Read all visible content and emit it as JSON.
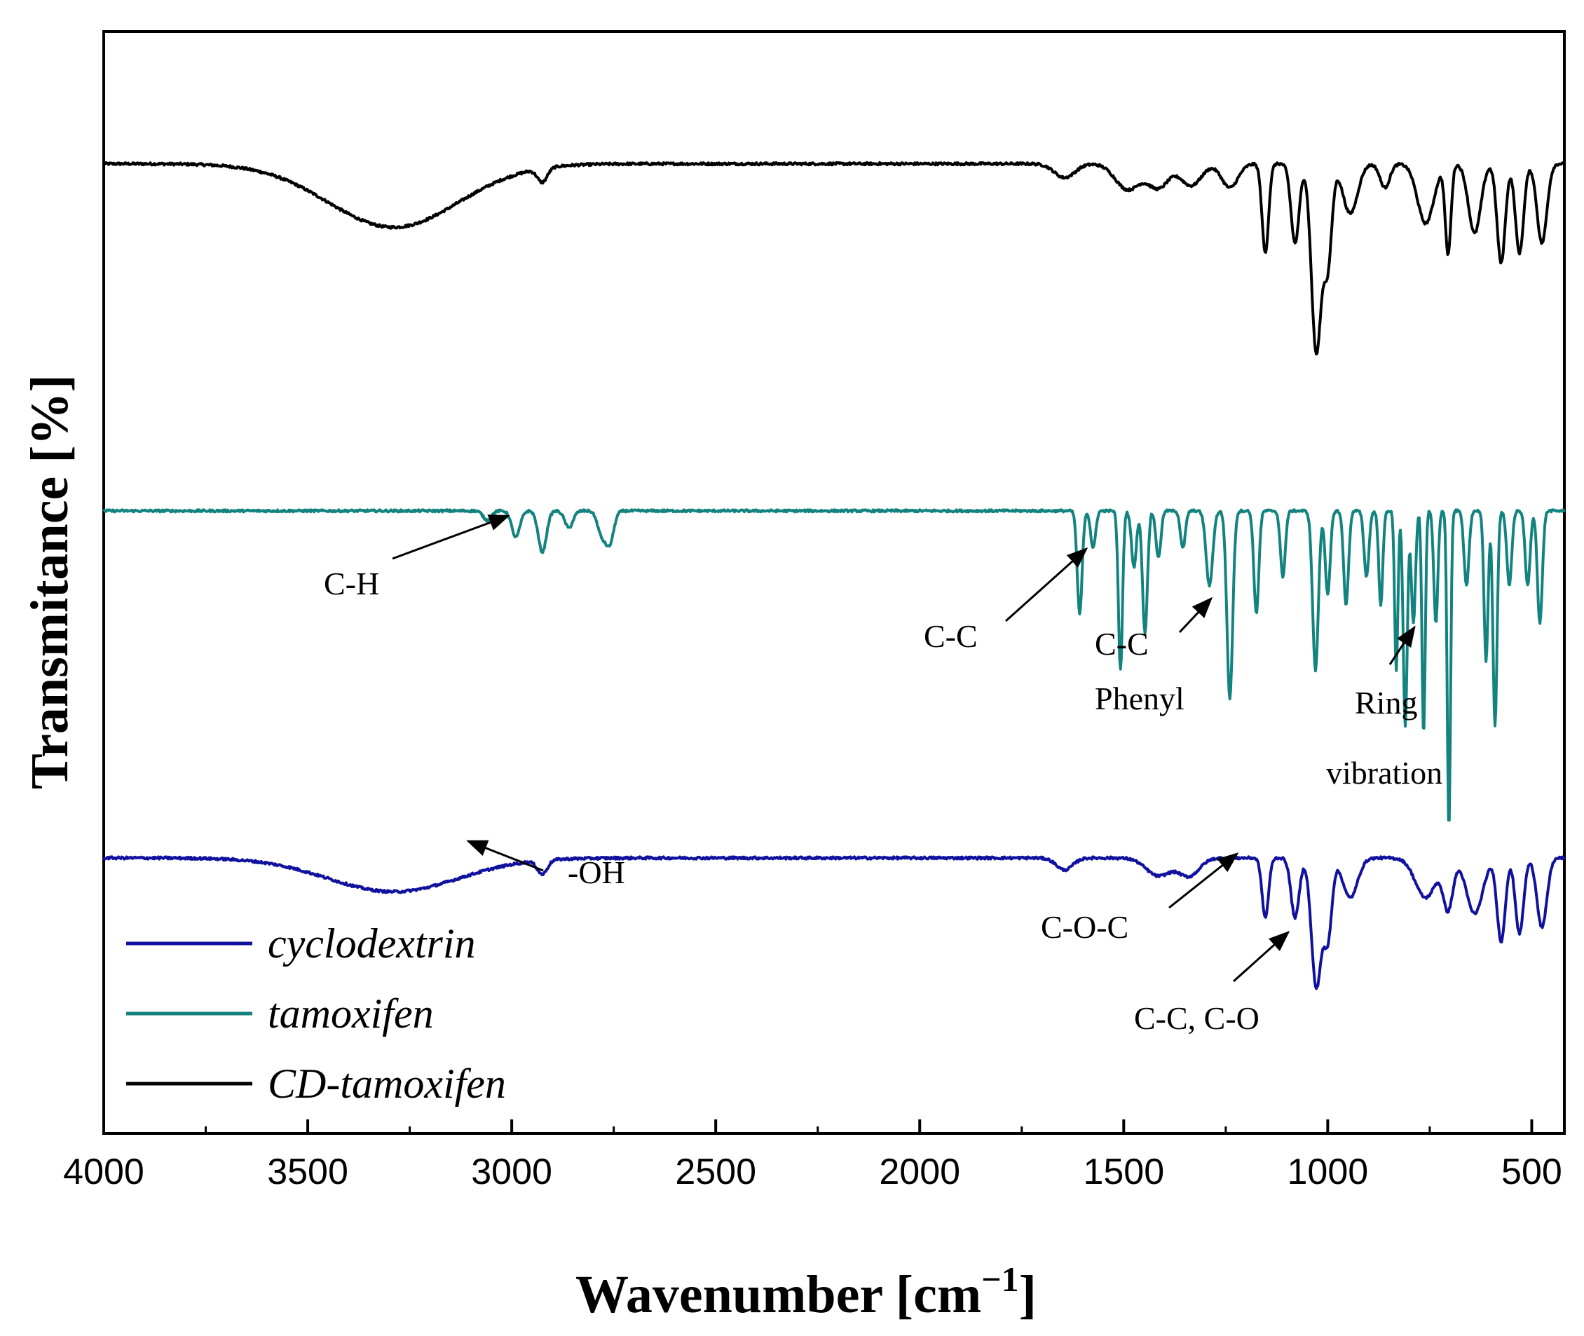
{
  "chart_data": {
    "type": "line",
    "title": "",
    "xlabel": "Wavenumber [cm",
    "xlabel_sup": "−1",
    "xlabel_close": "]",
    "ylabel": "Transmitance [%]",
    "xlim": [
      4000,
      420
    ],
    "x_direction": "reversed",
    "x_ticks": [
      4000,
      3500,
      3000,
      2500,
      2000,
      1500,
      1000,
      500
    ],
    "y_ticks": [],
    "grid": false,
    "legend_position": "bottom-left",
    "series": [
      {
        "name": "CD-tamoxifen",
        "color": "#000000",
        "offset": 0.88,
        "amplitude": 0.18,
        "features": [
          {
            "center": 3290,
            "width": 160,
            "depth": 0.32
          },
          {
            "center": 2925,
            "width": 12,
            "depth": 0.07
          },
          {
            "center": 1645,
            "width": 25,
            "depth": 0.07
          },
          {
            "center": 1490,
            "width": 30,
            "depth": 0.13
          },
          {
            "center": 1415,
            "width": 25,
            "depth": 0.12
          },
          {
            "center": 1335,
            "width": 25,
            "depth": 0.11
          },
          {
            "center": 1240,
            "width": 20,
            "depth": 0.12
          },
          {
            "center": 1153,
            "width": 8,
            "depth": 0.45
          },
          {
            "center": 1080,
            "width": 10,
            "depth": 0.4
          },
          {
            "center": 1028,
            "width": 12,
            "depth": 0.95
          },
          {
            "center": 1000,
            "width": 10,
            "depth": 0.5
          },
          {
            "center": 945,
            "width": 18,
            "depth": 0.25
          },
          {
            "center": 860,
            "width": 12,
            "depth": 0.12
          },
          {
            "center": 760,
            "width": 20,
            "depth": 0.3
          },
          {
            "center": 705,
            "width": 7,
            "depth": 0.45
          },
          {
            "center": 640,
            "width": 15,
            "depth": 0.35
          },
          {
            "center": 575,
            "width": 10,
            "depth": 0.5
          },
          {
            "center": 530,
            "width": 10,
            "depth": 0.45
          },
          {
            "center": 475,
            "width": 12,
            "depth": 0.4
          }
        ]
      },
      {
        "name": "tamoxifen",
        "color": "#13837f",
        "offset": 0.565,
        "amplitude": 0.17,
        "features": [
          {
            "center": 3060,
            "width": 10,
            "depth": 0.05
          },
          {
            "center": 2990,
            "width": 10,
            "depth": 0.14
          },
          {
            "center": 2925,
            "width": 10,
            "depth": 0.22
          },
          {
            "center": 2860,
            "width": 10,
            "depth": 0.09
          },
          {
            "center": 2780,
            "width": 10,
            "depth": 0.12
          },
          {
            "center": 2760,
            "width": 10,
            "depth": 0.17
          },
          {
            "center": 1608,
            "width": 6,
            "depth": 0.55
          },
          {
            "center": 1575,
            "width": 6,
            "depth": 0.2
          },
          {
            "center": 1508,
            "width": 5,
            "depth": 0.85
          },
          {
            "center": 1475,
            "width": 6,
            "depth": 0.3
          },
          {
            "center": 1448,
            "width": 6,
            "depth": 0.65
          },
          {
            "center": 1415,
            "width": 6,
            "depth": 0.25
          },
          {
            "center": 1355,
            "width": 6,
            "depth": 0.2
          },
          {
            "center": 1290,
            "width": 8,
            "depth": 0.4
          },
          {
            "center": 1240,
            "width": 7,
            "depth": 1.0
          },
          {
            "center": 1175,
            "width": 6,
            "depth": 0.55
          },
          {
            "center": 1110,
            "width": 6,
            "depth": 0.35
          },
          {
            "center": 1030,
            "width": 7,
            "depth": 0.85
          },
          {
            "center": 1000,
            "width": 6,
            "depth": 0.45
          },
          {
            "center": 955,
            "width": 6,
            "depth": 0.5
          },
          {
            "center": 905,
            "width": 6,
            "depth": 0.35
          },
          {
            "center": 870,
            "width": 5,
            "depth": 0.5
          },
          {
            "center": 832,
            "width": 4,
            "depth": 0.85
          },
          {
            "center": 810,
            "width": 5,
            "depth": 1.15
          },
          {
            "center": 790,
            "width": 5,
            "depth": 0.6
          },
          {
            "center": 765,
            "width": 4,
            "depth": 1.2
          },
          {
            "center": 735,
            "width": 5,
            "depth": 0.6
          },
          {
            "center": 703,
            "width": 4,
            "depth": 1.7
          },
          {
            "center": 660,
            "width": 6,
            "depth": 0.4
          },
          {
            "center": 612,
            "width": 5,
            "depth": 0.8
          },
          {
            "center": 590,
            "width": 5,
            "depth": 1.15
          },
          {
            "center": 555,
            "width": 6,
            "depth": 0.4
          },
          {
            "center": 510,
            "width": 6,
            "depth": 0.4
          },
          {
            "center": 480,
            "width": 6,
            "depth": 0.6
          }
        ]
      },
      {
        "name": "cyclodextrin",
        "color": "#11119f",
        "offset": 0.25,
        "amplitude": 0.18,
        "features": [
          {
            "center": 3290,
            "width": 160,
            "depth": 0.17
          },
          {
            "center": 2925,
            "width": 12,
            "depth": 0.07
          },
          {
            "center": 1645,
            "width": 20,
            "depth": 0.06
          },
          {
            "center": 1415,
            "width": 30,
            "depth": 0.09
          },
          {
            "center": 1340,
            "width": 25,
            "depth": 0.09
          },
          {
            "center": 1153,
            "width": 8,
            "depth": 0.3
          },
          {
            "center": 1080,
            "width": 10,
            "depth": 0.3
          },
          {
            "center": 1028,
            "width": 12,
            "depth": 0.65
          },
          {
            "center": 1000,
            "width": 10,
            "depth": 0.4
          },
          {
            "center": 945,
            "width": 18,
            "depth": 0.2
          },
          {
            "center": 760,
            "width": 25,
            "depth": 0.2
          },
          {
            "center": 705,
            "width": 12,
            "depth": 0.25
          },
          {
            "center": 640,
            "width": 20,
            "depth": 0.28
          },
          {
            "center": 575,
            "width": 10,
            "depth": 0.42
          },
          {
            "center": 530,
            "width": 10,
            "depth": 0.38
          },
          {
            "center": 475,
            "width": 12,
            "depth": 0.35
          }
        ]
      }
    ],
    "annotations": [
      {
        "id": "ch",
        "lines": [
          "C-H"
        ],
        "arrow_to_x": 2960,
        "arrow_to_series": "tamoxifen"
      },
      {
        "id": "cc1",
        "lines": [
          "C-C"
        ],
        "arrow_to_x": 1570,
        "arrow_to_series": "tamoxifen"
      },
      {
        "id": "cc-phenyl",
        "lines": [
          "C-C",
          "Phenyl"
        ],
        "arrow_to_x": 1225,
        "arrow_to_series": "tamoxifen"
      },
      {
        "id": "ring",
        "lines": [
          "Ring",
          "vibration"
        ],
        "arrow_to_x": 770,
        "arrow_to_series": "tamoxifen"
      },
      {
        "id": "oh",
        "lines": [
          "-OH"
        ],
        "arrow_to_x": 3110,
        "arrow_to_series": "cyclodextrin"
      },
      {
        "id": "coc",
        "lines": [
          "C-O-C"
        ],
        "arrow_to_x": 1190,
        "arrow_to_series": "cyclodextrin"
      },
      {
        "id": "cc-co",
        "lines": [
          "C-C, C-O"
        ],
        "arrow_to_x": 1030,
        "arrow_to_series": "cyclodextrin"
      }
    ],
    "legend": [
      "cyclodextrin",
      "tamoxifen",
      "CD-tamoxifen"
    ]
  }
}
